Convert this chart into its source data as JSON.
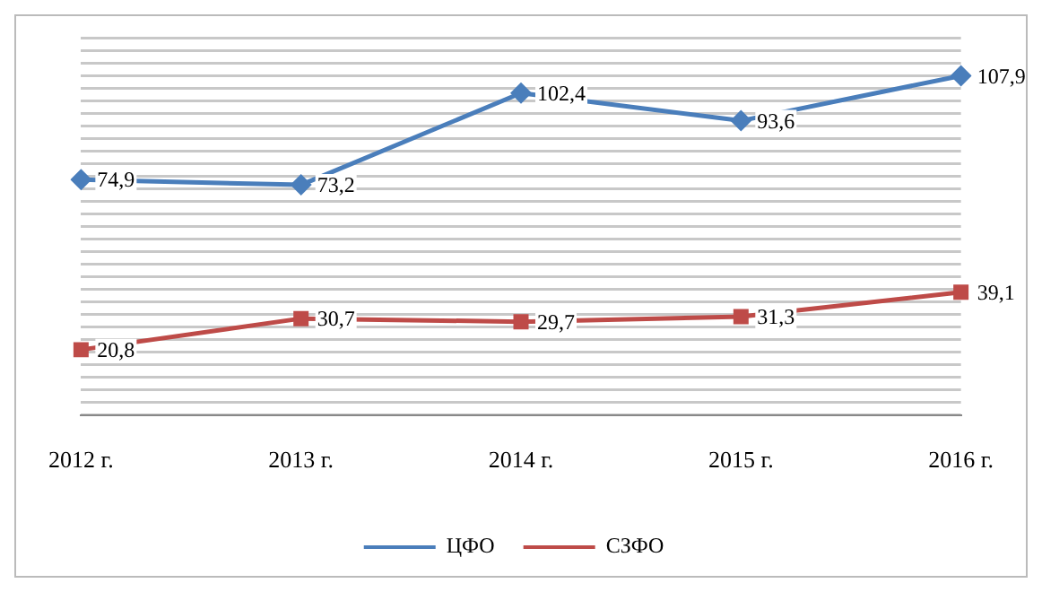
{
  "chart_data": {
    "type": "line",
    "categories": [
      "2012 г.",
      "2013 г.",
      "2014 г.",
      "2015 г.",
      "2016 г."
    ],
    "series": [
      {
        "name": "ЦФО",
        "color": "#4a7ebb",
        "values": [
          74.9,
          73.2,
          102.4,
          93.6,
          107.9
        ],
        "value_labels": [
          "74,9",
          "73,2",
          "102,4",
          "93,6",
          "107,9"
        ],
        "marker": "diamond"
      },
      {
        "name": "СЗФО",
        "color": "#be4b48",
        "values": [
          20.8,
          30.7,
          29.7,
          31.3,
          39.1
        ],
        "value_labels": [
          "20,8",
          "30,7",
          "29,7",
          "31,3",
          "39,1"
        ],
        "marker": "square"
      }
    ],
    "grid": "y",
    "legend": "bottom",
    "tick_labels": "x",
    "line_style": "solid"
  }
}
